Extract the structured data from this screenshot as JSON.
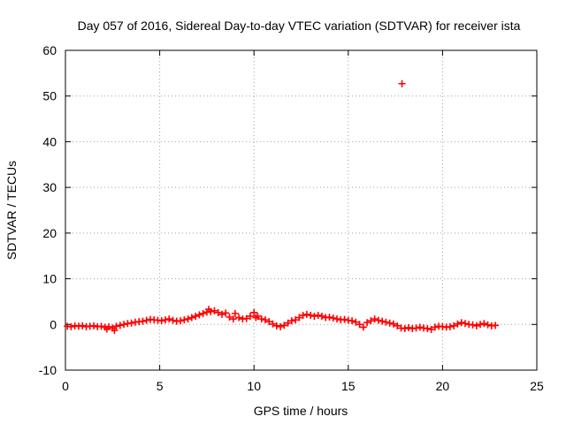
{
  "chart_data": {
    "type": "scatter",
    "title": "Day 057 of 2016, Sidereal Day-to-day VTEC variation (SDTVAR) for receiver ista",
    "xlabel": "GPS time / hours",
    "ylabel": "SDTVAR / TECUs",
    "xlim": [
      0,
      25
    ],
    "ylim": [
      -10,
      60
    ],
    "xticks": [
      0,
      5,
      10,
      15,
      20,
      25
    ],
    "yticks": [
      -10,
      0,
      10,
      20,
      30,
      40,
      50,
      60
    ],
    "grid": true,
    "marker": "+",
    "series": [
      {
        "name": "SDTVAR",
        "color": "#ff0000",
        "x": [
          0.1,
          0.3,
          0.5,
          0.7,
          0.9,
          1.1,
          1.3,
          1.5,
          1.7,
          1.9,
          2.1,
          2.2,
          2.3,
          2.5,
          2.6,
          2.7,
          2.9,
          3.1,
          3.3,
          3.5,
          3.7,
          3.9,
          4.1,
          4.3,
          4.5,
          4.7,
          4.9,
          5.1,
          5.3,
          5.5,
          5.7,
          5.9,
          6.1,
          6.3,
          6.5,
          6.7,
          6.9,
          7.1,
          7.3,
          7.5,
          7.6,
          7.7,
          7.9,
          8.1,
          8.3,
          8.5,
          8.7,
          8.9,
          9.0,
          9.2,
          9.4,
          9.6,
          9.8,
          10.0,
          10.1,
          10.2,
          10.4,
          10.6,
          10.8,
          11.0,
          11.2,
          11.4,
          11.6,
          11.8,
          12.0,
          12.2,
          12.4,
          12.6,
          12.8,
          13.0,
          13.2,
          13.4,
          13.6,
          13.8,
          14.0,
          14.2,
          14.4,
          14.6,
          14.8,
          15.0,
          15.2,
          15.4,
          15.6,
          15.8,
          16.0,
          16.2,
          16.4,
          16.6,
          16.8,
          17.0,
          17.2,
          17.4,
          17.6,
          17.8,
          18.0,
          18.2,
          18.4,
          18.6,
          18.8,
          19.0,
          19.2,
          19.4,
          19.6,
          19.8,
          20.0,
          20.2,
          20.4,
          20.6,
          20.8,
          21.0,
          21.2,
          21.4,
          21.6,
          21.8,
          22.0,
          22.2,
          22.4,
          22.6,
          22.8,
          17.85
        ],
        "y": [
          -0.4,
          -0.5,
          -0.3,
          -0.4,
          -0.3,
          -0.5,
          -0.4,
          -0.3,
          -0.5,
          -0.4,
          -0.6,
          -1.0,
          -0.5,
          -0.8,
          -1.3,
          -0.4,
          -0.2,
          0.0,
          0.2,
          0.3,
          0.5,
          0.6,
          0.7,
          0.9,
          1.1,
          1.0,
          0.9,
          0.8,
          1.0,
          1.2,
          0.9,
          0.7,
          0.8,
          1.0,
          1.2,
          1.5,
          1.8,
          2.1,
          2.4,
          2.7,
          3.3,
          2.8,
          3.0,
          2.6,
          2.2,
          2.5,
          1.6,
          1.2,
          2.4,
          1.5,
          1.2,
          1.3,
          1.8,
          2.6,
          1.5,
          1.8,
          1.2,
          1.0,
          0.6,
          0.1,
          -0.3,
          -0.5,
          -0.2,
          0.3,
          0.8,
          1.0,
          1.5,
          2.0,
          2.2,
          2.0,
          1.8,
          2.0,
          1.8,
          1.5,
          1.6,
          1.4,
          1.2,
          1.0,
          1.1,
          0.9,
          0.8,
          0.5,
          0.0,
          -0.6,
          0.4,
          0.8,
          1.2,
          0.9,
          0.7,
          0.5,
          0.3,
          0.1,
          -0.3,
          -0.8,
          -0.9,
          -0.7,
          -0.9,
          -0.8,
          -0.6,
          -0.8,
          -0.9,
          -1.1,
          -0.6,
          -0.4,
          -0.5,
          -0.6,
          -0.5,
          -0.3,
          0.1,
          0.4,
          0.2,
          0.0,
          -0.1,
          -0.3,
          0.0,
          0.2,
          -0.1,
          -0.3,
          -0.2,
          52.7
        ]
      }
    ]
  }
}
